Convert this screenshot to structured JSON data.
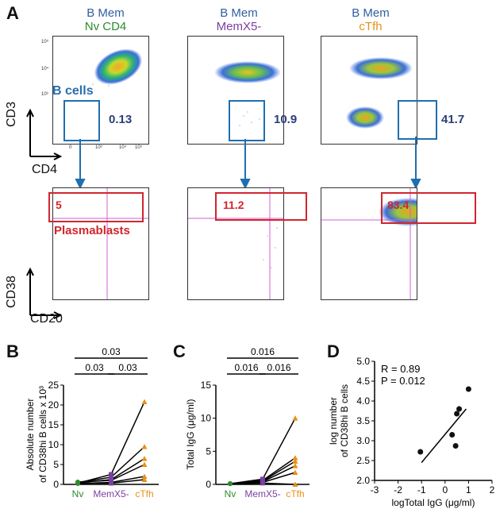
{
  "panel_a": {
    "letter": "A",
    "columns": [
      {
        "line1": "B Mem",
        "line2": "Nv CD4",
        "line2_color": "#2e8b2e",
        "gate_pct": "0.13",
        "plasma_pct": "5"
      },
      {
        "line1": "B Mem",
        "line2": "MemX5-",
        "line2_color": "#7b3fa0",
        "gate_pct": "10.9",
        "plasma_pct": "11.2"
      },
      {
        "line1": "B Mem",
        "line2": "cTfh",
        "line2_color": "#e8901a",
        "gate_pct": "41.7",
        "plasma_pct": "83.4"
      }
    ],
    "b_cells_label": "B cells",
    "plasmablasts_label": "Plasmablasts",
    "axis_cd3": "CD3",
    "axis_cd4": "CD4",
    "axis_cd38": "CD38",
    "axis_cd20": "CD20",
    "tick_labels": [
      "0",
      "10³",
      "10⁴",
      "10⁵"
    ]
  },
  "chart_data": [
    {
      "panel": "B",
      "type": "scatter",
      "ylabel_line1": "Absolute number",
      "ylabel_line2": "of CD38hi B cells x 10³",
      "categories": [
        "Nv",
        "MemX5-",
        "cTfh"
      ],
      "category_colors": [
        "#2e8b2e",
        "#7b3fa0",
        "#e8901a"
      ],
      "yticks": [
        "0",
        "5",
        "10",
        "15",
        "20",
        "25"
      ],
      "ylim": [
        0,
        25
      ],
      "series": [
        {
          "name": "donor1",
          "values": [
            0.3,
            2.5,
            20.8
          ]
        },
        {
          "name": "donor2",
          "values": [
            0.5,
            1.8,
            9.5
          ]
        },
        {
          "name": "donor3",
          "values": [
            0.4,
            1.2,
            6.5
          ]
        },
        {
          "name": "donor4",
          "values": [
            0.6,
            1.0,
            5.0
          ]
        },
        {
          "name": "donor5",
          "values": [
            0.2,
            0.5,
            2.0
          ]
        },
        {
          "name": "donor6",
          "values": [
            0.3,
            0.3,
            1.2
          ]
        }
      ],
      "significance": [
        {
          "label": "0.03",
          "from": 0,
          "to": 2
        },
        {
          "label": "0.03",
          "from": 0,
          "to": 1
        },
        {
          "label": "0.03",
          "from": 1,
          "to": 2
        }
      ]
    },
    {
      "panel": "C",
      "type": "scatter",
      "ylabel": "Total IgG  (μg/ml)",
      "categories": [
        "Nv",
        "MemX5-",
        "cTfh"
      ],
      "category_colors": [
        "#2e8b2e",
        "#7b3fa0",
        "#e8901a"
      ],
      "yticks": [
        "0",
        "5",
        "10",
        "15"
      ],
      "ylim": [
        0,
        15
      ],
      "series": [
        {
          "name": "donor1",
          "values": [
            0.1,
            0.8,
            10.0
          ]
        },
        {
          "name": "donor2",
          "values": [
            0.1,
            0.6,
            4.0
          ]
        },
        {
          "name": "donor3",
          "values": [
            0.1,
            0.5,
            3.5
          ]
        },
        {
          "name": "donor4",
          "values": [
            0.1,
            0.4,
            2.8
          ]
        },
        {
          "name": "donor5",
          "values": [
            0.1,
            0.3,
            1.8
          ]
        },
        {
          "name": "donor6",
          "values": [
            0.1,
            0.2,
            0.0
          ]
        }
      ],
      "significance": [
        {
          "label": "0.016",
          "from": 0,
          "to": 2
        },
        {
          "label": "0.016",
          "from": 0,
          "to": 1
        },
        {
          "label": "0.016",
          "from": 1,
          "to": 2
        }
      ]
    },
    {
      "panel": "D",
      "type": "scatter",
      "xlabel": "logTotal IgG (μg/ml)",
      "ylabel_line1": "log number",
      "ylabel_line2": "of CD38hi B cells",
      "xlim": [
        -3,
        2
      ],
      "ylim": [
        2.0,
        5.0
      ],
      "xticks": [
        "-3",
        "-2",
        "-1",
        "0",
        "1",
        "2"
      ],
      "yticks": [
        "2.0",
        "2.5",
        "3.0",
        "3.5",
        "4.0",
        "4.5",
        "5.0"
      ],
      "x": [
        -1.05,
        0.3,
        0.45,
        0.5,
        0.6,
        1.0
      ],
      "y": [
        2.72,
        3.15,
        2.87,
        3.68,
        3.8,
        4.3
      ],
      "fit": {
        "x": [
          -1.0,
          0.9
        ],
        "y": [
          2.45,
          3.8
        ]
      },
      "annotation_r": "R = 0.89",
      "annotation_p": "P = 0.012"
    }
  ]
}
